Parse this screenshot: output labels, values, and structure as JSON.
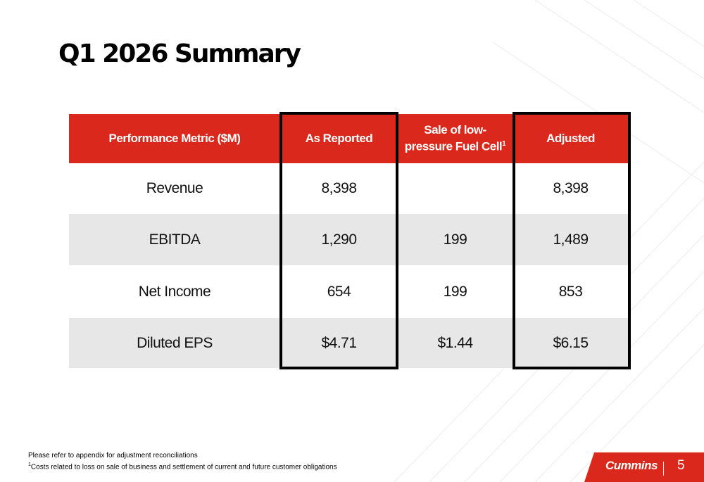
{
  "slide": {
    "title": "Q1 2026 Summary",
    "page_number": "5"
  },
  "table": {
    "headers": [
      {
        "line1": "Performance Metric ($M)",
        "line2": "",
        "sup": ""
      },
      {
        "line1": "As Reported",
        "line2": "",
        "sup": ""
      },
      {
        "line1": "Sale of low-",
        "line2": "pressure Fuel Cell",
        "sup": "1"
      },
      {
        "line1": "Adjusted",
        "line2": "",
        "sup": ""
      }
    ],
    "rows": [
      {
        "metric": "Revenue",
        "as_reported": "8,398",
        "adjustment": "",
        "adjusted": "8,398"
      },
      {
        "metric": "EBITDA",
        "as_reported": "1,290",
        "adjustment": "199",
        "adjusted": "1,489"
      },
      {
        "metric": "Net Income",
        "as_reported": "654",
        "adjustment": "199",
        "adjusted": "853"
      },
      {
        "metric": "Diluted EPS",
        "as_reported": "$4.71",
        "adjustment": "$1.44",
        "adjusted": "$6.15"
      }
    ]
  },
  "footnotes": {
    "note1": "Please refer to appendix for adjustment reconciliations",
    "note2_sup": "1",
    "note2": "Costs related to loss on sale of business and settlement of current and future customer obligations"
  },
  "footer": {
    "brand": "Cummins"
  },
  "colors": {
    "accent": "#da291c",
    "row_alt": "#e7e7e7"
  }
}
